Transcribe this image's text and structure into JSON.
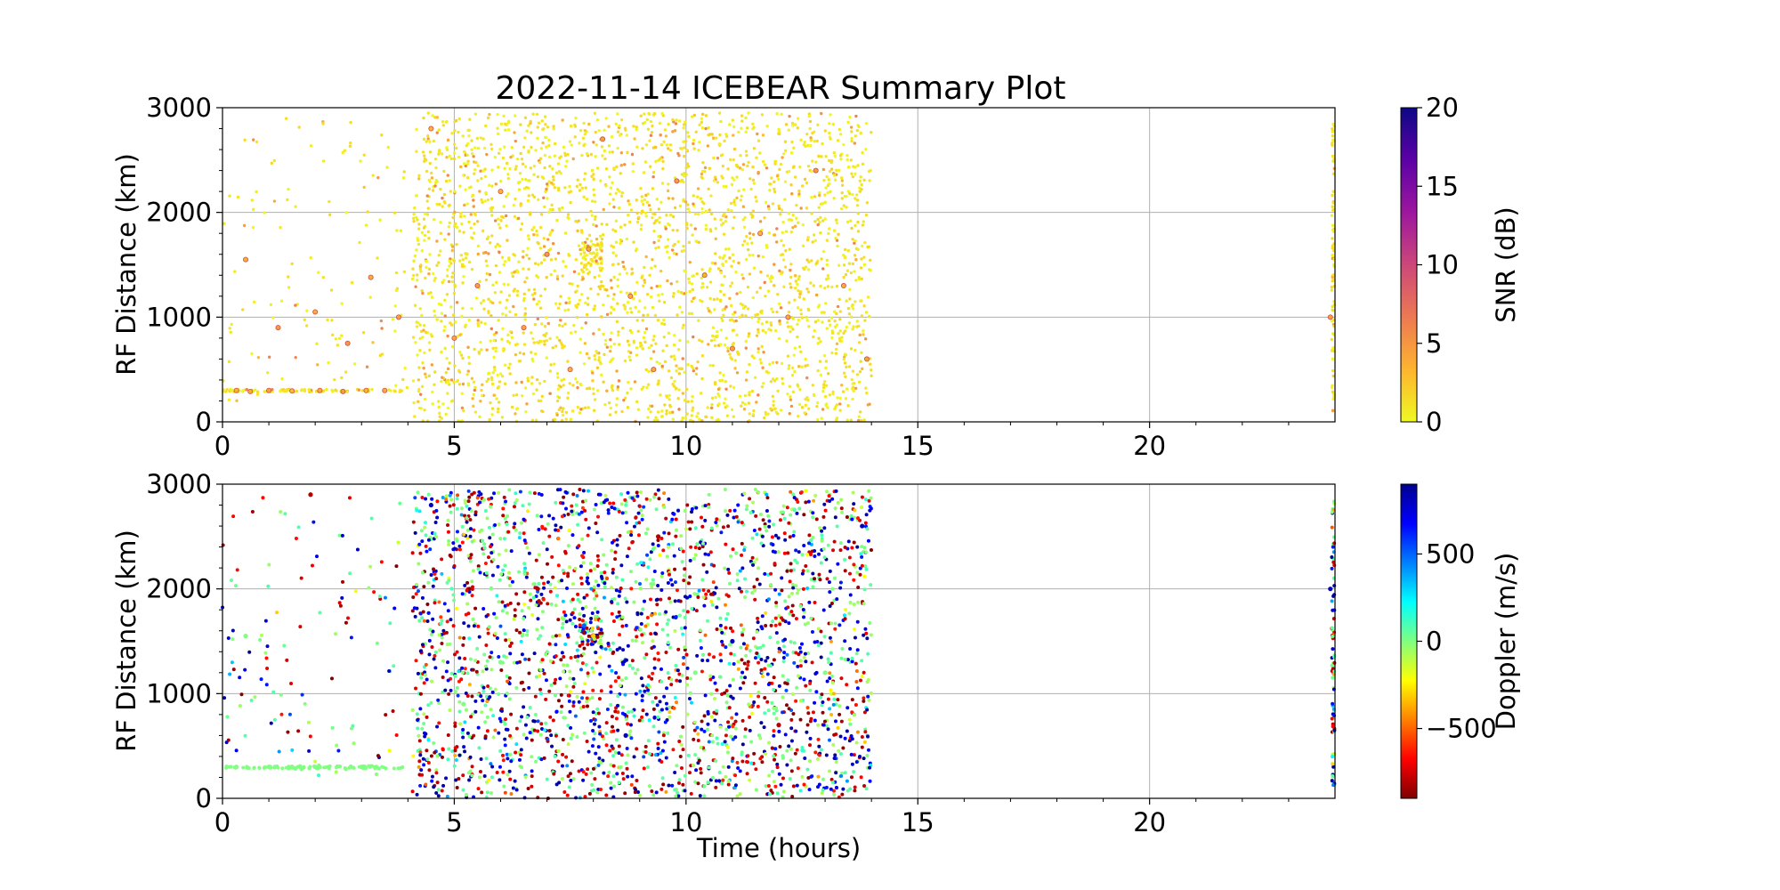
{
  "chart_data": [
    {
      "type": "scatter",
      "title": "2022-11-14 ICEBEAR Summary Plot",
      "xlabel": "",
      "ylabel": "RF Distance (km)",
      "xlim": [
        0,
        24
      ],
      "ylim": [
        0,
        3000
      ],
      "xticks": [
        "0",
        "5",
        "10",
        "15",
        "20"
      ],
      "yticks": [
        "0",
        "1000",
        "2000",
        "3000"
      ],
      "grid": true,
      "colorbar": {
        "label": "SNR (dB)",
        "range": [
          0,
          20
        ],
        "ticks": [
          "0",
          "5",
          "10",
          "15",
          "20"
        ],
        "colormap": "plasma_r",
        "colors": [
          "#f0f921",
          "#fdb42f",
          "#ed7953",
          "#cc4778",
          "#9c179e",
          "#5c01a6",
          "#0d0887"
        ]
      },
      "description_of_density": "points concentrated 4-14 h across 0-3000 km, sparse 0-4 h, a thin column at ~24 h, and a band near 300 km for 0-4 h",
      "series": [
        {
          "values": [
            [
              0.3,
              300
            ],
            [
              0.6,
              290
            ],
            [
              1.0,
              300
            ],
            [
              1.5,
              295
            ],
            [
              2.1,
              300
            ],
            [
              2.6,
              290
            ],
            [
              3.1,
              300
            ],
            [
              3.5,
              300
            ],
            [
              0.5,
              1550
            ],
            [
              1.2,
              900
            ],
            [
              2.0,
              1050
            ],
            [
              2.7,
              750
            ],
            [
              3.2,
              1380
            ],
            [
              3.8,
              1000
            ],
            [
              4.5,
              2800
            ],
            [
              5.0,
              800
            ],
            [
              5.5,
              1300
            ],
            [
              6.0,
              2200
            ],
            [
              6.5,
              900
            ],
            [
              7.0,
              1600
            ],
            [
              7.5,
              500
            ],
            [
              7.9,
              1650
            ],
            [
              8.2,
              2700
            ],
            [
              8.8,
              1200
            ],
            [
              9.3,
              500
            ],
            [
              9.8,
              2300
            ],
            [
              10.4,
              1400
            ],
            [
              11.0,
              700
            ],
            [
              11.6,
              1800
            ],
            [
              12.2,
              1000
            ],
            [
              12.8,
              2400
            ],
            [
              13.4,
              1300
            ],
            [
              13.9,
              600
            ],
            [
              23.9,
              1000
            ]
          ]
        }
      ]
    },
    {
      "type": "scatter",
      "title": "",
      "xlabel": "Time (hours)",
      "ylabel": "RF Distance (km)",
      "xlim": [
        0,
        24
      ],
      "ylim": [
        0,
        3000
      ],
      "xticks": [
        "0",
        "5",
        "10",
        "15",
        "20"
      ],
      "yticks": [
        "0",
        "1000",
        "2000",
        "3000"
      ],
      "grid": true,
      "colorbar": {
        "label": "Doppler (m/s)",
        "range": [
          -900,
          900
        ],
        "ticks": [
          "−500",
          "0",
          "500"
        ],
        "tick_values": [
          -500,
          0,
          500
        ],
        "colormap": "jet_r",
        "colors": [
          "#7f0000",
          "#ff0000",
          "#ff8000",
          "#ffff00",
          "#80ff80",
          "#00ffff",
          "#0080ff",
          "#0000ff",
          "#00008f"
        ]
      },
      "series": [
        {
          "values": [
            [
              0.3,
              300,
              0
            ],
            [
              1.0,
              300,
              0
            ],
            [
              2.0,
              300,
              0
            ],
            [
              3.0,
              300,
              0
            ],
            [
              0.5,
              1550,
              0
            ],
            [
              1.9,
              2900,
              -800
            ],
            [
              4.5,
              2800,
              800
            ],
            [
              5.2,
              900,
              0
            ],
            [
              6.0,
              1300,
              0
            ],
            [
              6.8,
              2000,
              -800
            ],
            [
              7.8,
              1650,
              500
            ],
            [
              8.0,
              1550,
              -300
            ],
            [
              8.7,
              600,
              800
            ],
            [
              9.4,
              2500,
              -800
            ],
            [
              10.2,
              1200,
              0
            ],
            [
              11.0,
              1500,
              800
            ],
            [
              12.0,
              700,
              -800
            ],
            [
              13.0,
              1200,
              0
            ],
            [
              13.8,
              2600,
              800
            ],
            [
              23.9,
              2000,
              800
            ]
          ]
        }
      ]
    }
  ]
}
